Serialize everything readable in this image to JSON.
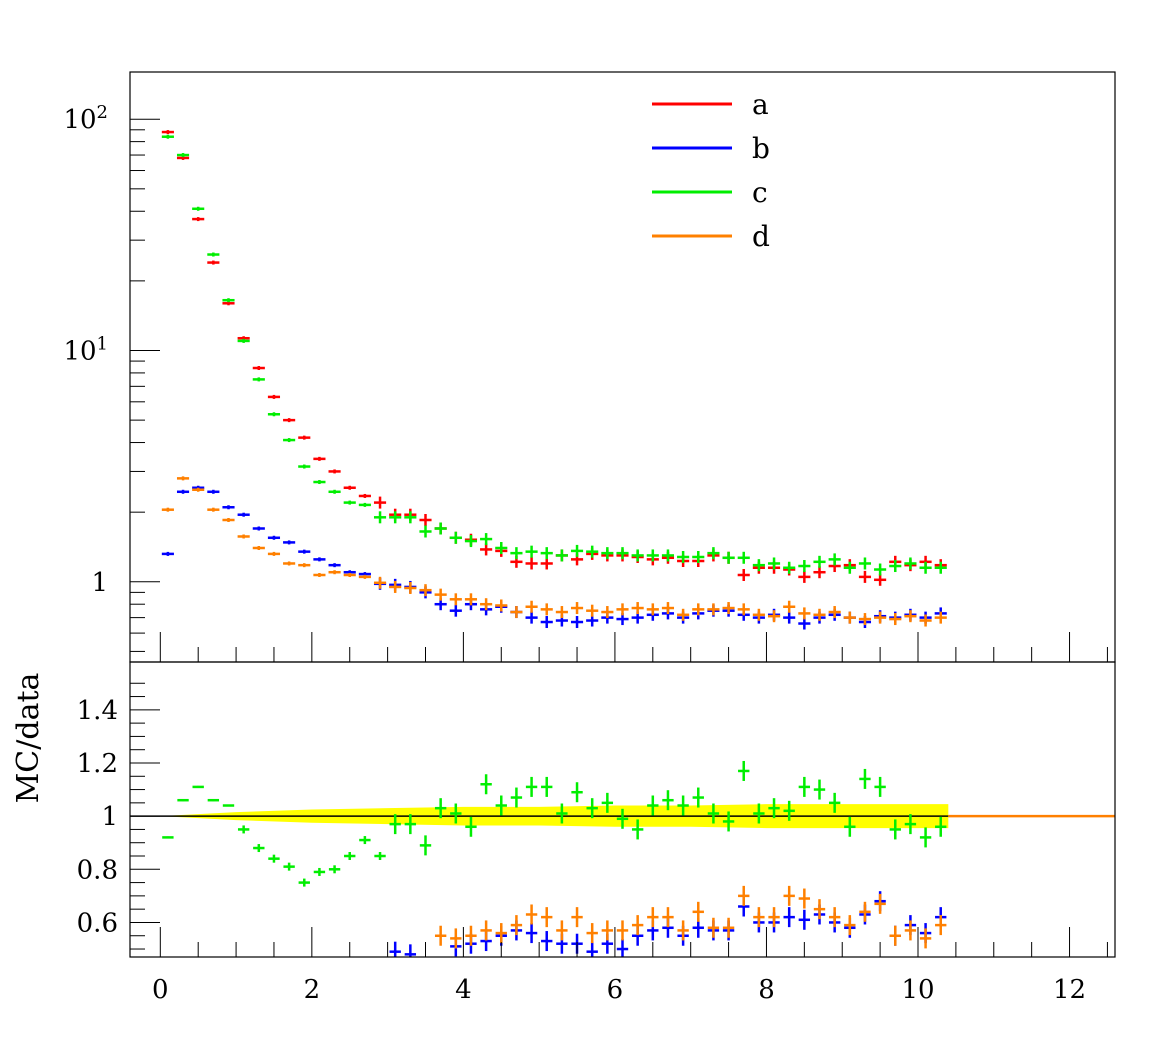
{
  "chart_data": [
    {
      "type": "scatter",
      "panel": "main",
      "xlabel": "",
      "ylabel": "",
      "xlim": [
        -0.4,
        12.6
      ],
      "ylim": [
        0.45,
        160
      ],
      "yscale": "log",
      "y_tick_labels": [
        {
          "value": 100,
          "base": "10",
          "exp": "2"
        },
        {
          "value": 10,
          "base": "10",
          "exp": "1"
        },
        {
          "value": 1,
          "base": "1",
          "exp": ""
        }
      ],
      "x_tick_labels": [
        "0",
        "2",
        "4",
        "6",
        "8",
        "10",
        "12"
      ],
      "x_tick_values": [
        0,
        2,
        4,
        6,
        8,
        10,
        12
      ],
      "legend": {
        "position": "top-right",
        "entries": [
          "a",
          "b",
          "c",
          "d"
        ]
      },
      "bin_width": 0.2,
      "x": [
        0.1,
        0.3,
        0.5,
        0.7,
        0.9,
        1.1,
        1.3,
        1.5,
        1.7,
        1.9,
        2.1,
        2.3,
        2.5,
        2.7,
        2.9,
        3.1,
        3.3,
        3.5,
        3.7,
        3.9,
        4.1,
        4.3,
        4.5,
        4.7,
        4.9,
        5.1,
        5.3,
        5.5,
        5.7,
        5.9,
        6.1,
        6.3,
        6.5,
        6.7,
        6.9,
        7.1,
        7.3,
        7.5,
        7.7,
        7.9,
        8.1,
        8.3,
        8.5,
        8.7,
        8.9,
        9.1,
        9.3,
        9.5,
        9.7,
        9.9,
        10.1,
        10.3
      ],
      "series": [
        {
          "name": "a",
          "color": "#ff0000",
          "values": [
            88,
            68,
            37,
            24,
            16,
            11.3,
            8.4,
            6.3,
            5.0,
            4.2,
            3.4,
            3.0,
            2.55,
            2.35,
            2.2,
            1.95,
            1.95,
            1.85,
            1.7,
            1.55,
            1.52,
            1.38,
            1.36,
            1.22,
            1.2,
            1.2,
            1.3,
            1.25,
            1.32,
            1.3,
            1.3,
            1.28,
            1.25,
            1.27,
            1.23,
            1.23,
            1.3,
            1.27,
            1.07,
            1.15,
            1.15,
            1.13,
            1.05,
            1.1,
            1.17,
            1.18,
            1.05,
            1.02,
            1.22,
            1.18,
            1.22,
            1.18
          ]
        },
        {
          "name": "b",
          "color": "#0000ff",
          "values": [
            1.32,
            2.45,
            2.55,
            2.45,
            2.1,
            1.95,
            1.7,
            1.55,
            1.48,
            1.35,
            1.25,
            1.18,
            1.1,
            1.08,
            0.98,
            0.97,
            0.95,
            0.9,
            0.8,
            0.75,
            0.8,
            0.76,
            0.78,
            0.74,
            0.7,
            0.67,
            0.68,
            0.67,
            0.68,
            0.7,
            0.69,
            0.7,
            0.72,
            0.73,
            0.7,
            0.73,
            0.75,
            0.75,
            0.72,
            0.7,
            0.72,
            0.7,
            0.66,
            0.7,
            0.72,
            0.7,
            0.67,
            0.71,
            0.7,
            0.72,
            0.7,
            0.73
          ]
        },
        {
          "name": "c",
          "color": "#00ee00",
          "values": [
            84,
            70,
            41,
            26,
            16.5,
            11,
            7.5,
            5.3,
            4.1,
            3.15,
            2.7,
            2.45,
            2.2,
            2.15,
            1.9,
            1.9,
            1.9,
            1.65,
            1.7,
            1.55,
            1.5,
            1.53,
            1.4,
            1.33,
            1.35,
            1.33,
            1.3,
            1.36,
            1.35,
            1.33,
            1.33,
            1.3,
            1.3,
            1.3,
            1.28,
            1.28,
            1.33,
            1.27,
            1.27,
            1.18,
            1.2,
            1.15,
            1.17,
            1.22,
            1.25,
            1.15,
            1.2,
            1.13,
            1.17,
            1.2,
            1.15,
            1.15
          ]
        },
        {
          "name": "d",
          "color": "#ff8000",
          "values": [
            2.05,
            2.8,
            2.5,
            2.05,
            1.85,
            1.57,
            1.4,
            1.32,
            1.2,
            1.18,
            1.07,
            1.1,
            1.07,
            1.05,
            0.99,
            0.95,
            0.94,
            0.92,
            0.88,
            0.84,
            0.84,
            0.8,
            0.79,
            0.74,
            0.78,
            0.76,
            0.74,
            0.77,
            0.75,
            0.74,
            0.76,
            0.77,
            0.76,
            0.77,
            0.72,
            0.76,
            0.76,
            0.77,
            0.76,
            0.72,
            0.71,
            0.78,
            0.73,
            0.72,
            0.74,
            0.7,
            0.69,
            0.7,
            0.69,
            0.71,
            0.68,
            0.7
          ]
        }
      ]
    },
    {
      "type": "scatter",
      "panel": "ratio",
      "xlabel": "",
      "ylabel": "MC/data",
      "xlim": [
        -0.4,
        12.6
      ],
      "ylim": [
        0.47,
        1.58
      ],
      "y_tick_labels": [
        "0.6",
        "0.8",
        "1",
        "1.2",
        "1.4"
      ],
      "y_tick_values": [
        0.6,
        0.8,
        1.0,
        1.2,
        1.4
      ],
      "x_tick_labels": [
        "0",
        "2",
        "4",
        "6",
        "8",
        "10",
        "12"
      ],
      "x_tick_values": [
        0,
        2,
        4,
        6,
        8,
        10,
        12
      ],
      "reference_line": {
        "value": 1.0,
        "colors": [
          "#000000",
          "#ff8000"
        ]
      },
      "uncertainty_band": {
        "color": "#ffff00",
        "x": [
          0,
          1,
          2,
          3,
          4,
          5,
          6,
          7,
          8,
          9,
          10.4
        ],
        "half_width": [
          0.0,
          0.015,
          0.025,
          0.03,
          0.035,
          0.035,
          0.04,
          0.04,
          0.045,
          0.045,
          0.045
        ]
      },
      "bin_width": 0.2,
      "x": [
        0.1,
        0.3,
        0.5,
        0.7,
        0.9,
        1.1,
        1.3,
        1.5,
        1.7,
        1.9,
        2.1,
        2.3,
        2.5,
        2.7,
        2.9,
        3.1,
        3.3,
        3.5,
        3.7,
        3.9,
        4.1,
        4.3,
        4.5,
        4.7,
        4.9,
        5.1,
        5.3,
        5.5,
        5.7,
        5.9,
        6.1,
        6.3,
        6.5,
        6.7,
        6.9,
        7.1,
        7.3,
        7.5,
        7.7,
        7.9,
        8.1,
        8.3,
        8.5,
        8.7,
        8.9,
        9.1,
        9.3,
        9.5,
        9.7,
        9.9,
        10.1,
        10.3
      ],
      "series": [
        {
          "name": "b",
          "color": "#0000ff",
          "values": [
            null,
            null,
            null,
            null,
            null,
            null,
            null,
            null,
            null,
            null,
            null,
            null,
            null,
            null,
            null,
            0.49,
            0.48,
            null,
            null,
            0.51,
            0.52,
            0.53,
            0.55,
            0.57,
            0.56,
            0.53,
            0.52,
            0.52,
            0.49,
            0.52,
            0.5,
            0.55,
            0.57,
            0.58,
            0.55,
            0.58,
            0.57,
            0.57,
            0.66,
            0.6,
            0.6,
            0.62,
            0.61,
            0.63,
            0.6,
            0.58,
            0.63,
            0.68,
            0.55,
            0.59,
            0.56,
            0.62
          ]
        },
        {
          "name": "c",
          "color": "#00ee00",
          "values": [
            0.92,
            1.06,
            1.11,
            1.06,
            1.04,
            0.95,
            0.88,
            0.84,
            0.81,
            0.75,
            0.79,
            0.8,
            0.85,
            0.91,
            0.85,
            0.97,
            0.97,
            0.89,
            1.03,
            1.01,
            0.96,
            1.12,
            1.04,
            1.07,
            1.11,
            1.11,
            1.01,
            1.09,
            1.03,
            1.05,
            0.99,
            0.95,
            1.04,
            1.06,
            1.04,
            1.07,
            1.01,
            0.98,
            1.17,
            1.01,
            1.03,
            1.02,
            1.11,
            1.1,
            1.05,
            0.96,
            1.14,
            1.11,
            0.95,
            0.97,
            0.92,
            0.96
          ]
        },
        {
          "name": "d",
          "color": "#ff8000",
          "values": [
            null,
            null,
            null,
            null,
            null,
            null,
            null,
            null,
            null,
            null,
            null,
            null,
            null,
            null,
            null,
            null,
            null,
            null,
            0.55,
            0.54,
            0.55,
            0.57,
            0.56,
            0.59,
            0.63,
            0.62,
            0.57,
            0.62,
            0.56,
            0.57,
            0.57,
            0.59,
            0.62,
            0.62,
            0.57,
            0.64,
            0.58,
            0.58,
            0.7,
            0.62,
            0.62,
            0.7,
            0.69,
            0.65,
            0.62,
            0.59,
            0.64,
            0.67,
            0.55,
            0.57,
            0.54,
            0.59
          ]
        }
      ]
    }
  ],
  "legend": [
    {
      "label": "a",
      "color": "#ff0000"
    },
    {
      "label": "b",
      "color": "#0000ff"
    },
    {
      "label": "c",
      "color": "#00ee00"
    },
    {
      "label": "d",
      "color": "#ff8000"
    }
  ]
}
